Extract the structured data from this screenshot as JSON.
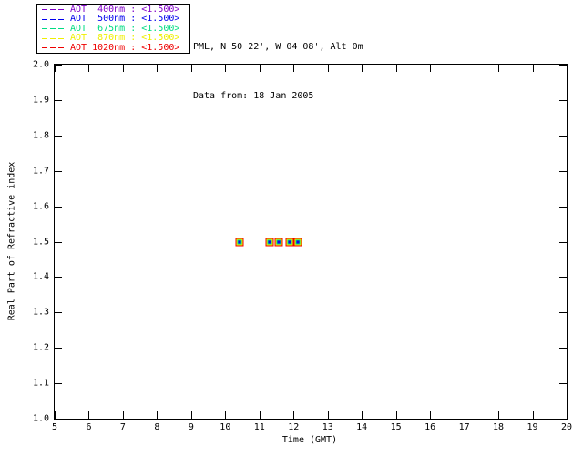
{
  "header": {
    "line1": "PML, N 50 22', W 04 08', Alt 0m",
    "line2": "Data from: 18 Jan 2005"
  },
  "legend": {
    "items": [
      {
        "label": "AOT  400nm : <1.500>",
        "wavelength_nm": 400,
        "color": "#8000C8"
      },
      {
        "label": "AOT  500nm : <1.500>",
        "wavelength_nm": 500,
        "color": "#0000EE"
      },
      {
        "label": "AOT  675nm : <1.500>",
        "wavelength_nm": 675,
        "color": "#00DC82"
      },
      {
        "label": "AOT  870nm : <1.500>",
        "wavelength_nm": 870,
        "color": "#EFEF00"
      },
      {
        "label": "AOT 1020nm : <1.500>",
        "wavelength_nm": 1020,
        "color": "#EE0000"
      }
    ]
  },
  "chart_data": {
    "type": "scatter",
    "title": "",
    "xlabel": "Time (GMT)",
    "ylabel": "Real Part of Refractive index",
    "xlim": [
      5,
      20
    ],
    "ylim": [
      1.0,
      2.0
    ],
    "xticks": [
      5,
      6,
      7,
      8,
      9,
      10,
      11,
      12,
      13,
      14,
      15,
      16,
      17,
      18,
      19,
      20
    ],
    "yticks": [
      1.0,
      1.1,
      1.2,
      1.3,
      1.4,
      1.5,
      1.6,
      1.7,
      1.8,
      1.9,
      2.0
    ],
    "grid": false,
    "legend_position": "top-left-outside",
    "x": [
      10.41,
      11.31,
      11.56,
      11.89,
      12.12
    ],
    "series": [
      {
        "name": "AOT 400nm",
        "wavelength_nm": 400,
        "color": "#8000C8",
        "stated_value": "<1.500>",
        "values": [
          1.5,
          1.5,
          1.5,
          1.5,
          1.5
        ]
      },
      {
        "name": "AOT 500nm",
        "wavelength_nm": 500,
        "color": "#0000EE",
        "stated_value": "<1.500>",
        "values": [
          1.5,
          1.5,
          1.5,
          1.5,
          1.5
        ]
      },
      {
        "name": "AOT 675nm",
        "wavelength_nm": 675,
        "color": "#00DC82",
        "stated_value": "<1.500>",
        "values": [
          1.5,
          1.5,
          1.5,
          1.5,
          1.5
        ]
      },
      {
        "name": "AOT 870nm",
        "wavelength_nm": 870,
        "color": "#EFEF00",
        "stated_value": "<1.500>",
        "values": [
          1.5,
          1.5,
          1.5,
          1.5,
          1.5
        ]
      },
      {
        "name": "AOT 1020nm",
        "wavelength_nm": 1020,
        "color": "#EE0000",
        "stated_value": "<1.500>",
        "values": [
          1.5,
          1.5,
          1.5,
          1.5,
          1.5
        ]
      }
    ],
    "marker": {
      "shape": "nested-open-squares",
      "order_outer_to_inner": [
        1020,
        870,
        675,
        500,
        400
      ],
      "outer_size_px": 9
    }
  },
  "colors": {
    "axis": "#000000",
    "background": "#FFFFFF"
  }
}
